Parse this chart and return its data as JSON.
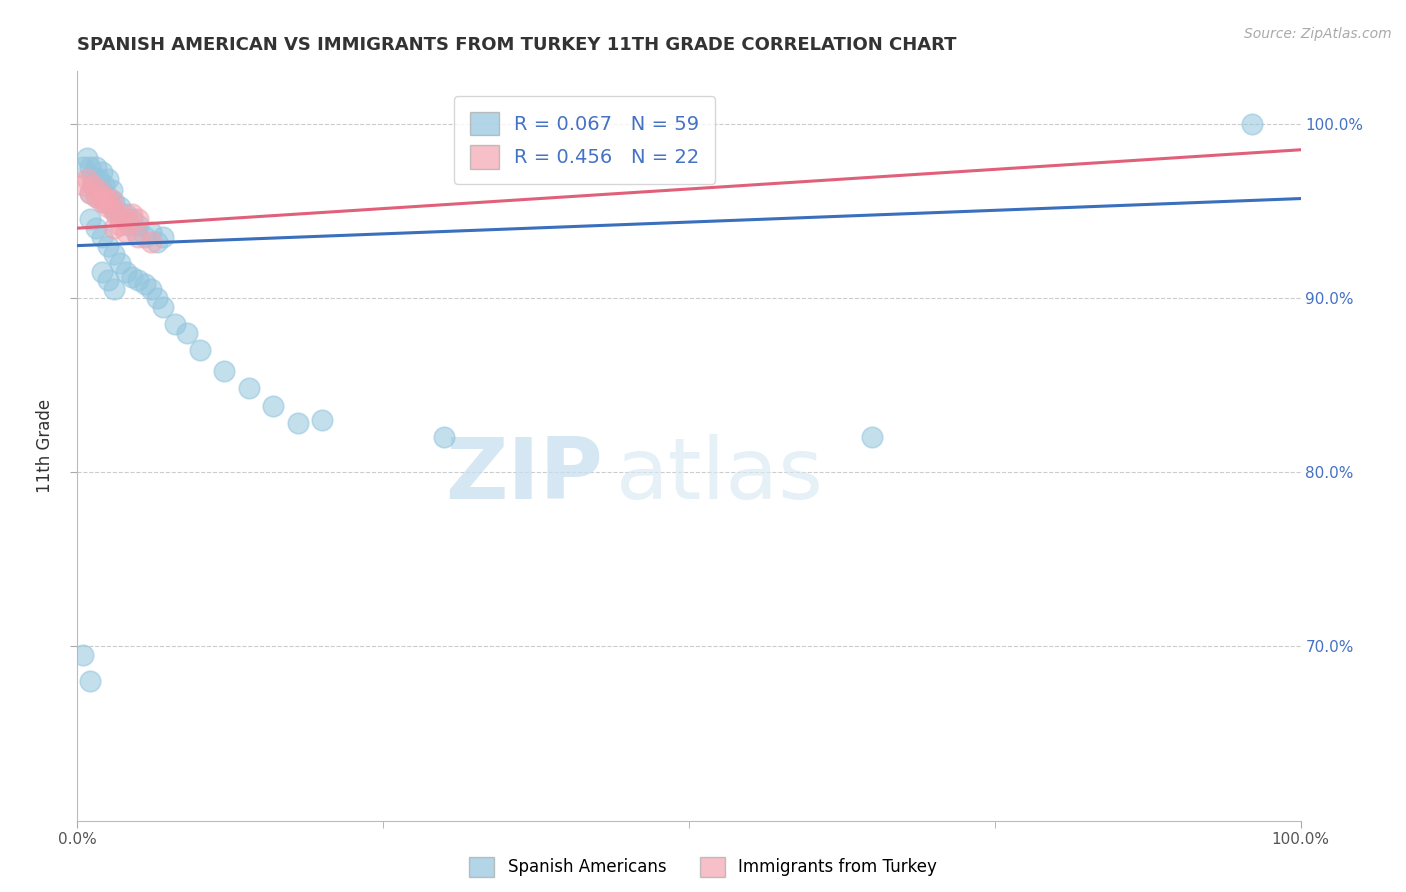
{
  "title": "SPANISH AMERICAN VS IMMIGRANTS FROM TURKEY 11TH GRADE CORRELATION CHART",
  "source": "Source: ZipAtlas.com",
  "ylabel": "11th Grade",
  "xlim": [
    0.0,
    1.0
  ],
  "ylim": [
    0.6,
    1.03
  ],
  "xticks": [
    0.0,
    1.0
  ],
  "xticklabels": [
    "0.0%",
    "100.0%"
  ],
  "yticks": [
    0.7,
    0.8,
    0.9,
    1.0
  ],
  "yticklabels": [
    "70.0%",
    "80.0%",
    "90.0%",
    "100.0%"
  ],
  "blue_R": 0.067,
  "blue_N": 59,
  "pink_R": 0.456,
  "pink_N": 22,
  "blue_color": "#92c5de",
  "pink_color": "#f4a5b0",
  "blue_line_color": "#3a6fbd",
  "pink_line_color": "#e0607a",
  "watermark_zip": "ZIP",
  "watermark_atlas": "atlas",
  "legend_label_blue": "R = 0.067   N = 59",
  "legend_label_pink": "R = 0.456   N = 22",
  "bottom_label_blue": "Spanish Americans",
  "bottom_label_pink": "Immigrants from Turkey",
  "blue_line_x0": 0.0,
  "blue_line_y0": 0.93,
  "blue_line_x1": 1.0,
  "blue_line_y1": 0.957,
  "pink_line_x0": 0.0,
  "pink_line_y0": 0.94,
  "pink_line_x1": 1.0,
  "pink_line_y1": 0.985,
  "blue_scatter_x": [
    0.005,
    0.008,
    0.01,
    0.012,
    0.015,
    0.018,
    0.02,
    0.022,
    0.025,
    0.028,
    0.01,
    0.013,
    0.016,
    0.019,
    0.022,
    0.025,
    0.028,
    0.03,
    0.032,
    0.035,
    0.038,
    0.04,
    0.042,
    0.045,
    0.048,
    0.05,
    0.055,
    0.06,
    0.065,
    0.07,
    0.01,
    0.015,
    0.02,
    0.025,
    0.03,
    0.035,
    0.04,
    0.045,
    0.05,
    0.055,
    0.06,
    0.065,
    0.07,
    0.08,
    0.09,
    0.1,
    0.12,
    0.14,
    0.16,
    0.18,
    0.02,
    0.025,
    0.03,
    0.3,
    0.2,
    0.005,
    0.01,
    0.96,
    0.65
  ],
  "blue_scatter_y": [
    0.975,
    0.98,
    0.975,
    0.97,
    0.975,
    0.968,
    0.972,
    0.965,
    0.968,
    0.962,
    0.96,
    0.965,
    0.958,
    0.962,
    0.955,
    0.958,
    0.952,
    0.955,
    0.948,
    0.952,
    0.945,
    0.948,
    0.942,
    0.945,
    0.938,
    0.942,
    0.935,
    0.938,
    0.932,
    0.935,
    0.945,
    0.94,
    0.935,
    0.93,
    0.925,
    0.92,
    0.915,
    0.912,
    0.91,
    0.908,
    0.905,
    0.9,
    0.895,
    0.885,
    0.88,
    0.87,
    0.858,
    0.848,
    0.838,
    0.828,
    0.915,
    0.91,
    0.905,
    0.82,
    0.83,
    0.695,
    0.68,
    1.0,
    0.82
  ],
  "pink_scatter_x": [
    0.005,
    0.008,
    0.01,
    0.012,
    0.015,
    0.018,
    0.02,
    0.022,
    0.025,
    0.028,
    0.03,
    0.035,
    0.04,
    0.045,
    0.05,
    0.03,
    0.035,
    0.04,
    0.05,
    0.06,
    0.02,
    0.025
  ],
  "pink_scatter_y": [
    0.965,
    0.968,
    0.96,
    0.965,
    0.958,
    0.962,
    0.955,
    0.958,
    0.952,
    0.956,
    0.95,
    0.948,
    0.945,
    0.948,
    0.945,
    0.94,
    0.942,
    0.938,
    0.935,
    0.932,
    0.958,
    0.955
  ]
}
